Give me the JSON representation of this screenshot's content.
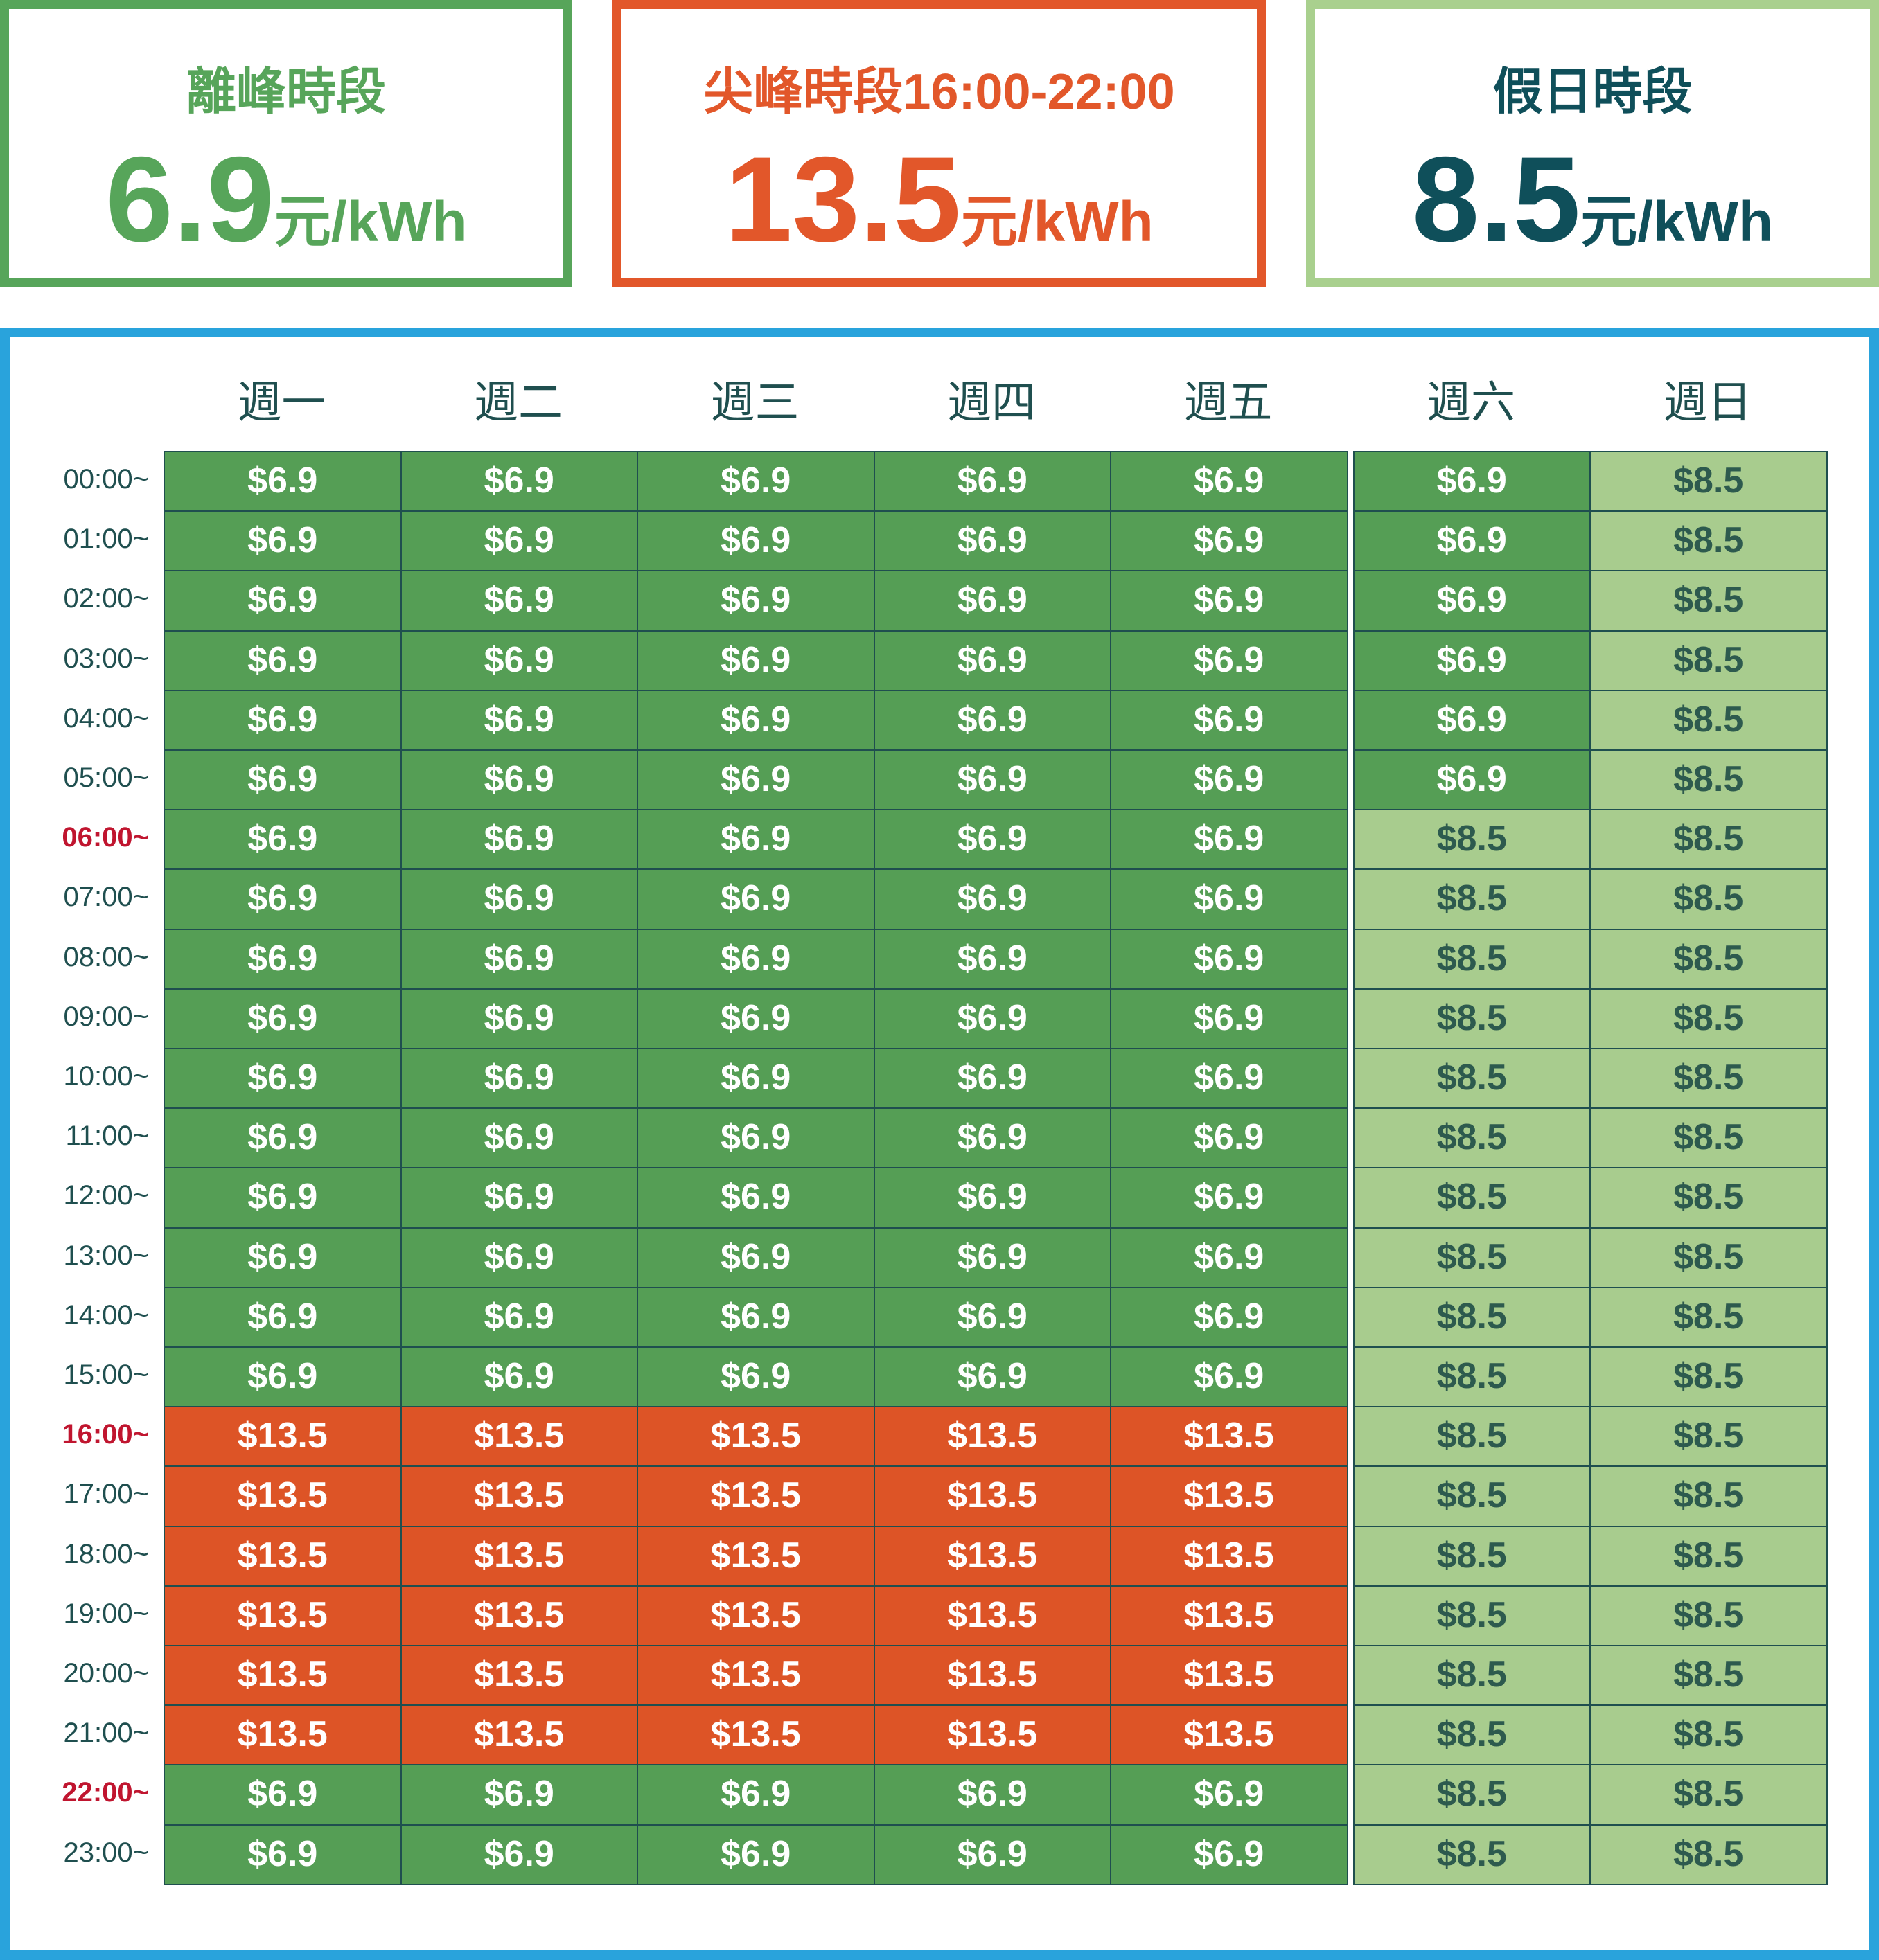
{
  "cards": [
    {
      "title": "離峰時段",
      "price": "6.9",
      "unit": "元/kWh"
    },
    {
      "title": "尖峰時段16:00-22:00",
      "price": "13.5",
      "unit": "元/kWh"
    },
    {
      "title": "假日時段",
      "price": "8.5",
      "unit": "元/kWh"
    }
  ],
  "table": {
    "columns": [
      "週一",
      "週二",
      "週三",
      "週四",
      "週五",
      "週六",
      "週日"
    ],
    "rows": [
      {
        "time": "00:00~",
        "cells": [
          "$6.9",
          "$6.9",
          "$6.9",
          "$6.9",
          "$6.9",
          "$6.9",
          "$8.5"
        ]
      },
      {
        "time": "01:00~",
        "cells": [
          "$6.9",
          "$6.9",
          "$6.9",
          "$6.9",
          "$6.9",
          "$6.9",
          "$8.5"
        ]
      },
      {
        "time": "02:00~",
        "cells": [
          "$6.9",
          "$6.9",
          "$6.9",
          "$6.9",
          "$6.9",
          "$6.9",
          "$8.5"
        ]
      },
      {
        "time": "03:00~",
        "cells": [
          "$6.9",
          "$6.9",
          "$6.9",
          "$6.9",
          "$6.9",
          "$6.9",
          "$8.5"
        ]
      },
      {
        "time": "04:00~",
        "cells": [
          "$6.9",
          "$6.9",
          "$6.9",
          "$6.9",
          "$6.9",
          "$6.9",
          "$8.5"
        ]
      },
      {
        "time": "05:00~",
        "cells": [
          "$6.9",
          "$6.9",
          "$6.9",
          "$6.9",
          "$6.9",
          "$6.9",
          "$8.5"
        ]
      },
      {
        "time": "06:00~",
        "cells": [
          "$6.9",
          "$6.9",
          "$6.9",
          "$6.9",
          "$6.9",
          "$8.5",
          "$8.5"
        ]
      },
      {
        "time": "07:00~",
        "cells": [
          "$6.9",
          "$6.9",
          "$6.9",
          "$6.9",
          "$6.9",
          "$8.5",
          "$8.5"
        ]
      },
      {
        "time": "08:00~",
        "cells": [
          "$6.9",
          "$6.9",
          "$6.9",
          "$6.9",
          "$6.9",
          "$8.5",
          "$8.5"
        ]
      },
      {
        "time": "09:00~",
        "cells": [
          "$6.9",
          "$6.9",
          "$6.9",
          "$6.9",
          "$6.9",
          "$8.5",
          "$8.5"
        ]
      },
      {
        "time": "10:00~",
        "cells": [
          "$6.9",
          "$6.9",
          "$6.9",
          "$6.9",
          "$6.9",
          "$8.5",
          "$8.5"
        ]
      },
      {
        "time": "11:00~",
        "cells": [
          "$6.9",
          "$6.9",
          "$6.9",
          "$6.9",
          "$6.9",
          "$8.5",
          "$8.5"
        ]
      },
      {
        "time": "12:00~",
        "cells": [
          "$6.9",
          "$6.9",
          "$6.9",
          "$6.9",
          "$6.9",
          "$8.5",
          "$8.5"
        ]
      },
      {
        "time": "13:00~",
        "cells": [
          "$6.9",
          "$6.9",
          "$6.9",
          "$6.9",
          "$6.9",
          "$8.5",
          "$8.5"
        ]
      },
      {
        "time": "14:00~",
        "cells": [
          "$6.9",
          "$6.9",
          "$6.9",
          "$6.9",
          "$6.9",
          "$8.5",
          "$8.5"
        ]
      },
      {
        "time": "15:00~",
        "cells": [
          "$6.9",
          "$6.9",
          "$6.9",
          "$6.9",
          "$6.9",
          "$8.5",
          "$8.5"
        ]
      },
      {
        "time": "16:00~",
        "cells": [
          "$13.5",
          "$13.5",
          "$13.5",
          "$13.5",
          "$13.5",
          "$8.5",
          "$8.5"
        ]
      },
      {
        "time": "17:00~",
        "cells": [
          "$13.5",
          "$13.5",
          "$13.5",
          "$13.5",
          "$13.5",
          "$8.5",
          "$8.5"
        ]
      },
      {
        "time": "18:00~",
        "cells": [
          "$13.5",
          "$13.5",
          "$13.5",
          "$13.5",
          "$13.5",
          "$8.5",
          "$8.5"
        ]
      },
      {
        "time": "19:00~",
        "cells": [
          "$13.5",
          "$13.5",
          "$13.5",
          "$13.5",
          "$13.5",
          "$8.5",
          "$8.5"
        ]
      },
      {
        "time": "20:00~",
        "cells": [
          "$13.5",
          "$13.5",
          "$13.5",
          "$13.5",
          "$13.5",
          "$8.5",
          "$8.5"
        ]
      },
      {
        "time": "21:00~",
        "cells": [
          "$13.5",
          "$13.5",
          "$13.5",
          "$13.5",
          "$13.5",
          "$8.5",
          "$8.5"
        ]
      },
      {
        "time": "22:00~",
        "cells": [
          "$6.9",
          "$6.9",
          "$6.9",
          "$6.9",
          "$6.9",
          "$8.5",
          "$8.5"
        ]
      },
      {
        "time": "23:00~",
        "cells": [
          "$6.9",
          "$6.9",
          "$6.9",
          "$6.9",
          "$6.9",
          "$8.5",
          "$8.5"
        ]
      }
    ]
  }
}
